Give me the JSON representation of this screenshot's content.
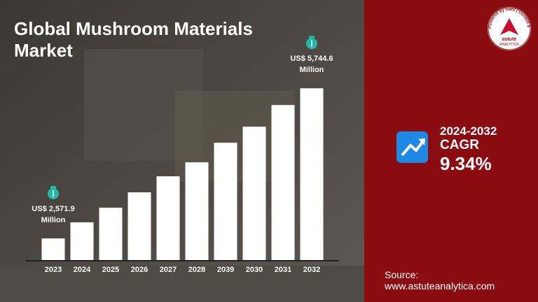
{
  "chart_data": {
    "type": "bar",
    "title": "Global Mushroom Materials Market",
    "categories": [
      "2023",
      "2024",
      "2025",
      "2026",
      "2027",
      "2028",
      "2039",
      "2030",
      "2031",
      "2032"
    ],
    "values": [
      2571.9,
      2912,
      3221,
      3546,
      3885,
      4181,
      4594,
      4933,
      5391,
      5744.6
    ],
    "value_labels": [
      "US$ 2,571.9 Million",
      null,
      null,
      null,
      null,
      null,
      null,
      null,
      null,
      "US$ 5,744.6 Million"
    ],
    "color": "#ffffff",
    "ylim": [
      2100,
      6000
    ]
  },
  "cagr": {
    "period": "2024-2032",
    "label": "CAGR",
    "value": "9.34%"
  },
  "source": {
    "label": "Source:",
    "url": "www.astuteanalytica.com"
  },
  "logo": {
    "ring": "Powered by Data | Guided by Intelligence",
    "name": "astute",
    "sub": "ANALYTICA"
  }
}
